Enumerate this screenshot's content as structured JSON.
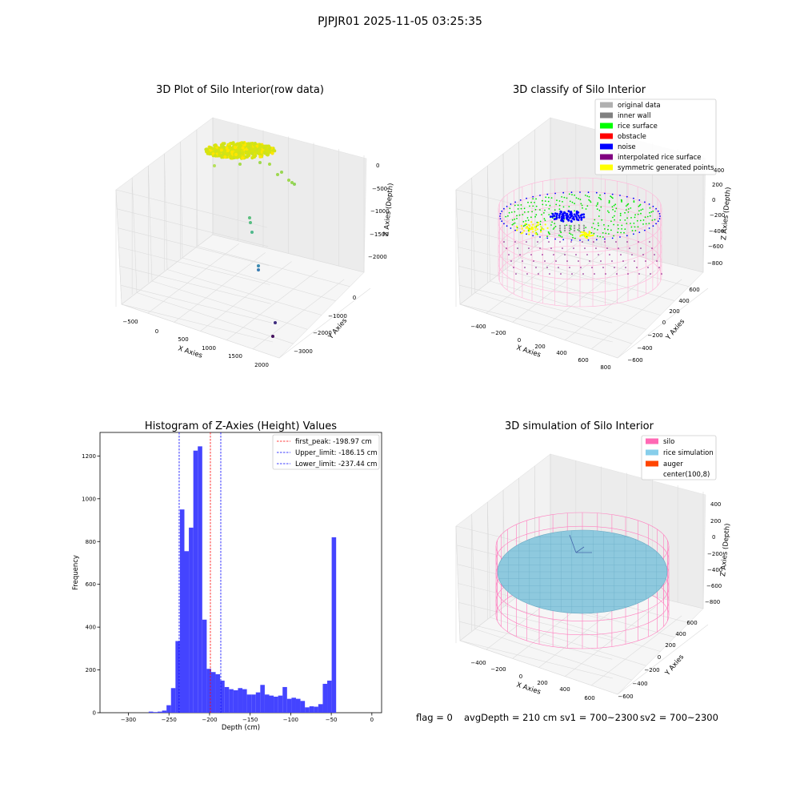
{
  "suptitle": "PJPJR01 2025-11-05 03:25:35",
  "status": {
    "flag": "flag = 0",
    "avg_depth": "avgDepth = 210 cm",
    "sv1": "sv1 = 700~2300",
    "sv2": "sv2 = 700~2300"
  },
  "chart_data": [
    {
      "type": "scatter",
      "title": "3D Plot of Silo Interior(row data)",
      "xlabel": "X Axies",
      "ylabel": "Y Axies",
      "zlabel": "Z Axies (Depth)",
      "x_ticks": [
        "-500",
        "0",
        "500",
        "1000",
        "1500",
        "2000"
      ],
      "y_ticks": [
        "-3000",
        "-2000",
        "-1000",
        "0"
      ],
      "z_ticks": [
        "0",
        "-500",
        "-1000",
        "-1500",
        "-2000"
      ],
      "grid": true
    },
    {
      "type": "scatter",
      "title": "3D classify of Silo Interior",
      "xlabel": "X Axies",
      "ylabel": "Y Axies",
      "zlabel": "Z Axies (Depth)",
      "x_ticks": [
        "-400",
        "-200",
        "0",
        "200",
        "400",
        "600",
        "800"
      ],
      "y_ticks": [
        "-600",
        "-400",
        "-200",
        "0",
        "200",
        "400",
        "600"
      ],
      "z_ticks": [
        "400",
        "200",
        "0",
        "-200",
        "-400",
        "-600",
        "-800"
      ],
      "legend_position": "top-right",
      "legend": [
        {
          "label": "original data",
          "color": "#b0b0b0"
        },
        {
          "label": "inner wall",
          "color": "#808080"
        },
        {
          "label": "rice surface",
          "color": "#00ff00"
        },
        {
          "label": "obstacle",
          "color": "#ff0000"
        },
        {
          "label": "noise",
          "color": "#0000ff"
        },
        {
          "label": "interpolated rice surface",
          "color": "#800080"
        },
        {
          "label": "symmetric generated points",
          "color": "#ffff00"
        }
      ],
      "grid": true
    },
    {
      "type": "bar",
      "title": "Histogram of Z-Axies (Height) Values",
      "xlabel": "Depth (cm)",
      "ylabel": "Frequency",
      "xlim": [
        -335,
        12
      ],
      "ylim": [
        0,
        1310
      ],
      "x_ticks": [
        -300,
        -250,
        -200,
        -150,
        -100,
        -50,
        0
      ],
      "y_ticks": [
        0,
        200,
        400,
        600,
        800,
        1000,
        1200
      ],
      "bar_color": "#4444ff",
      "bin_start": -275,
      "bin_width": 5.5,
      "values": [
        5,
        3,
        5,
        10,
        35,
        115,
        335,
        950,
        755,
        865,
        1225,
        1245,
        435,
        205,
        190,
        180,
        150,
        120,
        110,
        105,
        115,
        110,
        85,
        85,
        95,
        130,
        85,
        80,
        75,
        80,
        120,
        65,
        70,
        65,
        55,
        25,
        30,
        28,
        40,
        135,
        150,
        820
      ],
      "vlines": [
        {
          "value": -198.97,
          "color": "#ff0000",
          "label": "first_peak: -198.97 cm"
        },
        {
          "value": -186.15,
          "color": "#0000ff",
          "label": "Upper_limit: -186.15 cm"
        },
        {
          "value": -237.44,
          "color": "#0000ff",
          "label": "Lower_limit: -237.44 cm"
        }
      ],
      "legend_position": "top-right"
    },
    {
      "type": "scatter",
      "title": "3D simulation of Silo Interior",
      "xlabel": "X Axies",
      "ylabel": "Y Axies",
      "zlabel": "Z Axies (Depth)",
      "x_ticks": [
        "-400",
        "-200",
        "0",
        "200",
        "400",
        "600"
      ],
      "y_ticks": [
        "-600",
        "-400",
        "-200",
        "0",
        "200",
        "400",
        "600"
      ],
      "z_ticks": [
        "400",
        "200",
        "0",
        "-200",
        "-400",
        "-600",
        "-800"
      ],
      "legend_position": "top-right",
      "legend": [
        {
          "label": "silo",
          "color": "#ff69b4"
        },
        {
          "label": "rice simulation",
          "color": "#87ceeb"
        },
        {
          "label": "auger",
          "color": "#ff4500"
        },
        {
          "label": "center(100,8)",
          "color": "#ffffff"
        }
      ],
      "grid": true
    }
  ]
}
